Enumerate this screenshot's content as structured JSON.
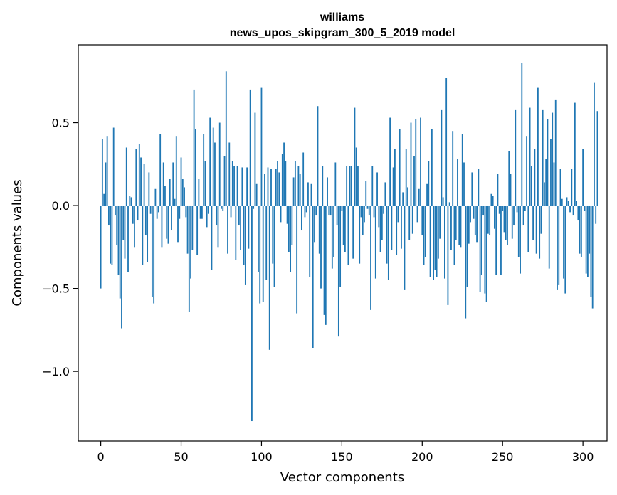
{
  "chart_data": {
    "type": "bar",
    "title": "williams",
    "subtitle": "news_upos_skipgram_300_5_2019 model",
    "xlabel": "Vector components",
    "ylabel": "Components values",
    "xlim": [
      -14,
      315
    ],
    "ylim": [
      -1.42,
      0.97
    ],
    "xticks": [
      0,
      50,
      100,
      150,
      200,
      250,
      300
    ],
    "xtick_labels": [
      "0",
      "50",
      "100",
      "150",
      "200",
      "250",
      "300"
    ],
    "yticks": [
      -1.0,
      -0.5,
      0.0,
      0.5
    ],
    "ytick_labels": [
      "−1.0",
      "−0.5",
      "0.0",
      "0.5"
    ],
    "bar_color": "#1f77b4",
    "grid": false,
    "values": [
      -0.5,
      0.4,
      0.07,
      0.26,
      0.42,
      -0.12,
      -0.35,
      -0.36,
      0.47,
      -0.06,
      -0.24,
      -0.42,
      -0.56,
      -0.74,
      -0.21,
      -0.32,
      0.35,
      -0.4,
      0.06,
      0.05,
      -0.11,
      -0.25,
      0.34,
      -0.09,
      0.37,
      0.29,
      -0.36,
      0.25,
      -0.18,
      -0.34,
      0.2,
      -0.05,
      -0.55,
      -0.59,
      0.1,
      -0.08,
      -0.04,
      0.43,
      -0.25,
      0.26,
      0.12,
      -0.2,
      -0.23,
      0.16,
      -0.15,
      0.26,
      0.04,
      0.42,
      -0.22,
      -0.08,
      0.29,
      0.16,
      0.11,
      -0.07,
      -0.29,
      -0.64,
      -0.44,
      -0.27,
      0.7,
      0.46,
      -0.3,
      0.16,
      -0.08,
      -0.08,
      0.43,
      0.27,
      -0.13,
      -0.05,
      0.53,
      -0.39,
      0.47,
      0.38,
      -0.12,
      -0.25,
      0.5,
      -0.02,
      -0.03,
      0.3,
      0.81,
      -0.29,
      0.38,
      -0.07,
      0.27,
      0.24,
      -0.33,
      0.24,
      -0.12,
      -0.27,
      0.23,
      -0.36,
      -0.48,
      0.23,
      -0.26,
      0.7,
      -1.3,
      -0.02,
      0.56,
      0.13,
      -0.4,
      -0.59,
      0.71,
      -0.58,
      0.19,
      -0.45,
      0.23,
      -0.87,
      0.22,
      -0.35,
      -0.49,
      0.22,
      0.27,
      0.2,
      -0.1,
      0.31,
      0.38,
      0.27,
      -0.11,
      -0.28,
      -0.4,
      -0.24,
      0.17,
      0.27,
      -0.65,
      0.24,
      0.19,
      -0.15,
      0.32,
      -0.07,
      -0.04,
      0.14,
      -0.43,
      0.13,
      -0.86,
      -0.22,
      -0.06,
      0.6,
      -0.29,
      -0.5,
      0.24,
      -0.66,
      -0.72,
      0.17,
      -0.06,
      -0.06,
      -0.38,
      -0.31,
      0.26,
      -0.12,
      -0.79,
      -0.49,
      -0.03,
      -0.24,
      -0.28,
      0.24,
      -0.36,
      0.24,
      0.24,
      -0.32,
      0.59,
      0.35,
      0.24,
      -0.35,
      -0.07,
      -0.18,
      -0.1,
      0.15,
      -0.02,
      -0.06,
      -0.63,
      0.24,
      -0.07,
      -0.44,
      0.2,
      -0.13,
      -0.28,
      -0.21,
      -0.05,
      0.14,
      -0.35,
      -0.45,
      0.53,
      -0.27,
      0.23,
      0.34,
      -0.3,
      -0.1,
      0.46,
      -0.26,
      0.08,
      -0.51,
      0.34,
      0.11,
      -0.21,
      0.5,
      -0.17,
      0.3,
      0.52,
      -0.1,
      0.1,
      0.53,
      -0.18,
      -0.36,
      -0.31,
      0.13,
      0.27,
      -0.43,
      0.46,
      -0.45,
      -0.39,
      -0.43,
      -0.32,
      -0.2,
      0.58,
      0.05,
      -0.44,
      0.77,
      -0.6,
      0.02,
      -0.27,
      0.45,
      -0.36,
      -0.21,
      0.28,
      -0.24,
      -0.25,
      0.43,
      0.26,
      -0.68,
      -0.49,
      -0.23,
      -0.1,
      0.2,
      -0.08,
      -0.18,
      -0.22,
      0.22,
      -0.52,
      -0.42,
      -0.06,
      -0.53,
      -0.58,
      -0.17,
      -0.18,
      0.07,
      0.06,
      -0.14,
      -0.42,
      0.19,
      -0.05,
      -0.42,
      -0.03,
      -0.16,
      -0.21,
      -0.24,
      0.33,
      0.19,
      -0.2,
      -0.12,
      0.58,
      -0.04,
      -0.31,
      -0.41,
      0.86,
      -0.12,
      -0.03,
      0.42,
      -0.28,
      0.59,
      0.24,
      -0.21,
      0.34,
      -0.29,
      0.71,
      -0.32,
      -0.17,
      0.58,
      0.14,
      0.28,
      0.52,
      -0.38,
      0.4,
      0.56,
      0.26,
      0.64,
      -0.51,
      -0.48,
      0.22,
      0.04,
      -0.44,
      -0.53,
      0.05,
      0.03,
      -0.04,
      0.22,
      -0.06,
      0.62,
      0.03,
      -0.09,
      -0.29,
      -0.31,
      0.34,
      -0.03,
      -0.41,
      -0.43,
      -0.29,
      -0.55,
      -0.62,
      0.74,
      -0.11,
      0.57
    ]
  }
}
